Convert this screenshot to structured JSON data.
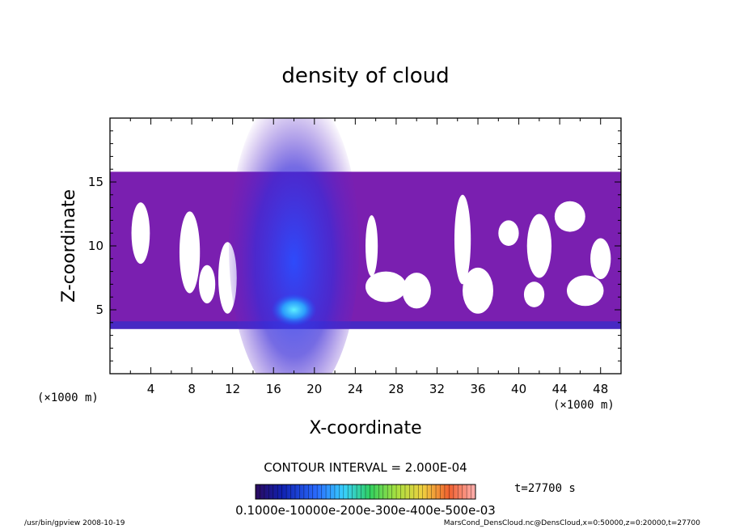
{
  "chart_data": {
    "type": "heatmap",
    "title": "density of cloud",
    "xlabel": "X-coordinate",
    "ylabel": "Z-coordinate",
    "x_unit_label": "(×1000 m)",
    "xlim": [
      0,
      50
    ],
    "ylim": [
      0,
      20
    ],
    "xticks": [
      "4",
      "8",
      "12",
      "16",
      "20",
      "24",
      "28",
      "32",
      "36",
      "40",
      "44",
      "48"
    ],
    "yticks": [
      "5",
      "10",
      "15"
    ],
    "cloud_layer_z": [
      3.5,
      15.8
    ],
    "core_x": [
      14,
      22
    ],
    "core_peak": {
      "x": 18,
      "z": 5
    },
    "contour_interval_text": "CONTOUR INTERVAL = 2.000E-04",
    "time_text": "t=27700 s",
    "colorbar_labels_text": "0.1000e-10000e-200e-300e-400e-500e-03",
    "colors": {
      "background_cloud": "#7a1fb0",
      "core": "#1e3cff",
      "peak": "#37c8ff"
    }
  },
  "footer": {
    "left": "/usr/bin/gpview  2008-10-19",
    "right": "MarsCond_DensCloud.nc@DensCloud,x=0:50000,z=0:20000,t=27700"
  }
}
